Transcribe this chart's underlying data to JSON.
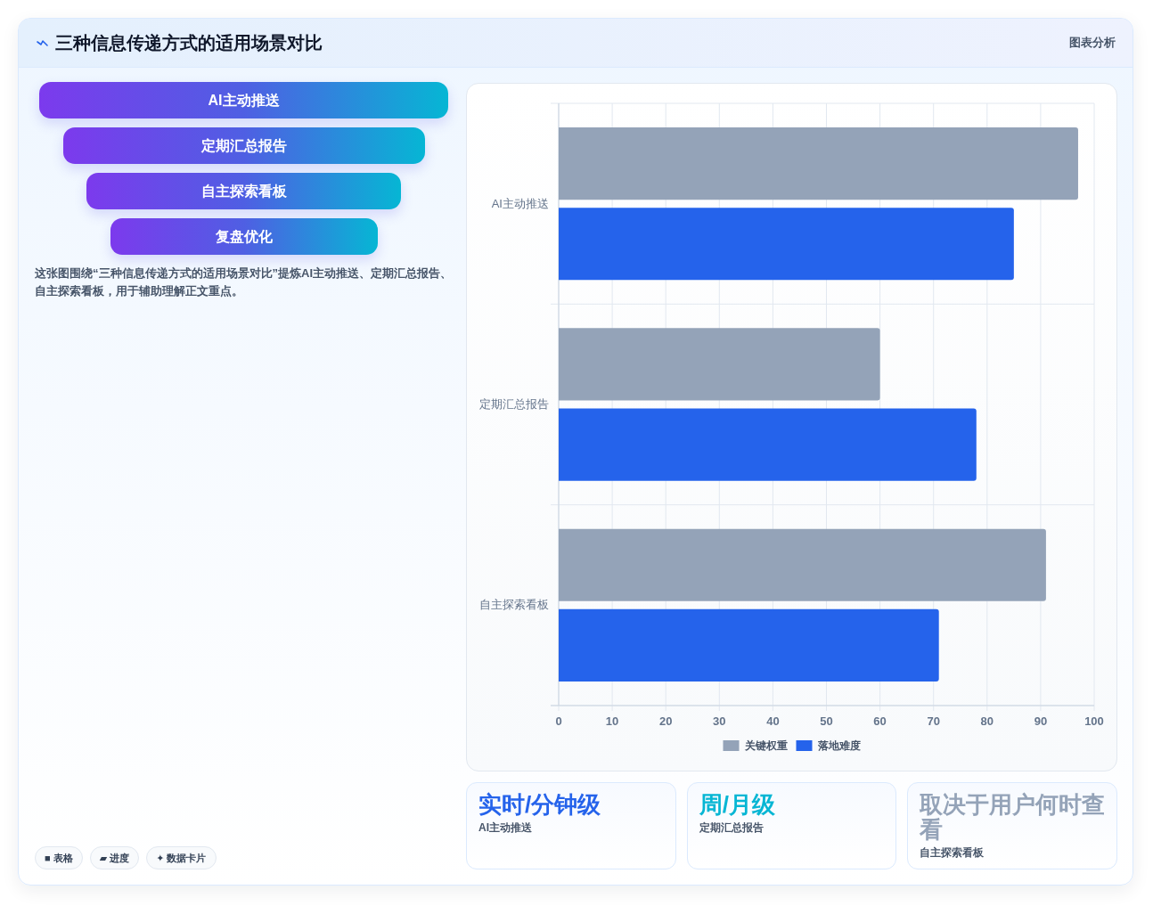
{
  "chart_data": [
    {
      "type": "other",
      "title": "三种信息传递方式的适用场景对比",
      "subtitle": "图表分析",
      "categories": [
        "AI主动推送",
        "定期汇总报告",
        "自主探索看板",
        "复盘优化"
      ],
      "annotations": [
        "这张图围绕“三种信息传递方式的适用场景对比”提炼AI主动推送、定期汇总报告、自主探索看板，用于辅助理解正文重点。",
        "■ 表格",
        "▰ 进度",
        "✦ 数据卡片"
      ]
    },
    {
      "type": "bar",
      "orientation": "horizontal",
      "categories": [
        "AI主动推送",
        "定期汇总报告",
        "自主探索看板"
      ],
      "series": [
        {
          "name": "关键权重",
          "color": "#94a3b8",
          "values": [
            97,
            60,
            91
          ]
        },
        {
          "name": "落地难度",
          "color": "#2563eb",
          "values": [
            85,
            78,
            71
          ]
        }
      ],
      "xlim": [
        0,
        100
      ],
      "xticks": [
        0,
        10,
        20,
        30,
        40,
        50,
        60,
        70,
        80,
        90,
        100
      ],
      "grid": true,
      "legend": "bottom"
    },
    {
      "type": "other",
      "title": "实时/分钟级",
      "subtitle": "AI主动推送",
      "colors": [
        "#2563eb"
      ]
    },
    {
      "type": "other",
      "title": "周/月级",
      "subtitle": "定期汇总报告",
      "colors": [
        "#06b6d4"
      ]
    },
    {
      "type": "other",
      "title": "取决于用户何时查看",
      "subtitle": "自主探索看板",
      "colors": [
        "#94a3b8"
      ]
    }
  ]
}
